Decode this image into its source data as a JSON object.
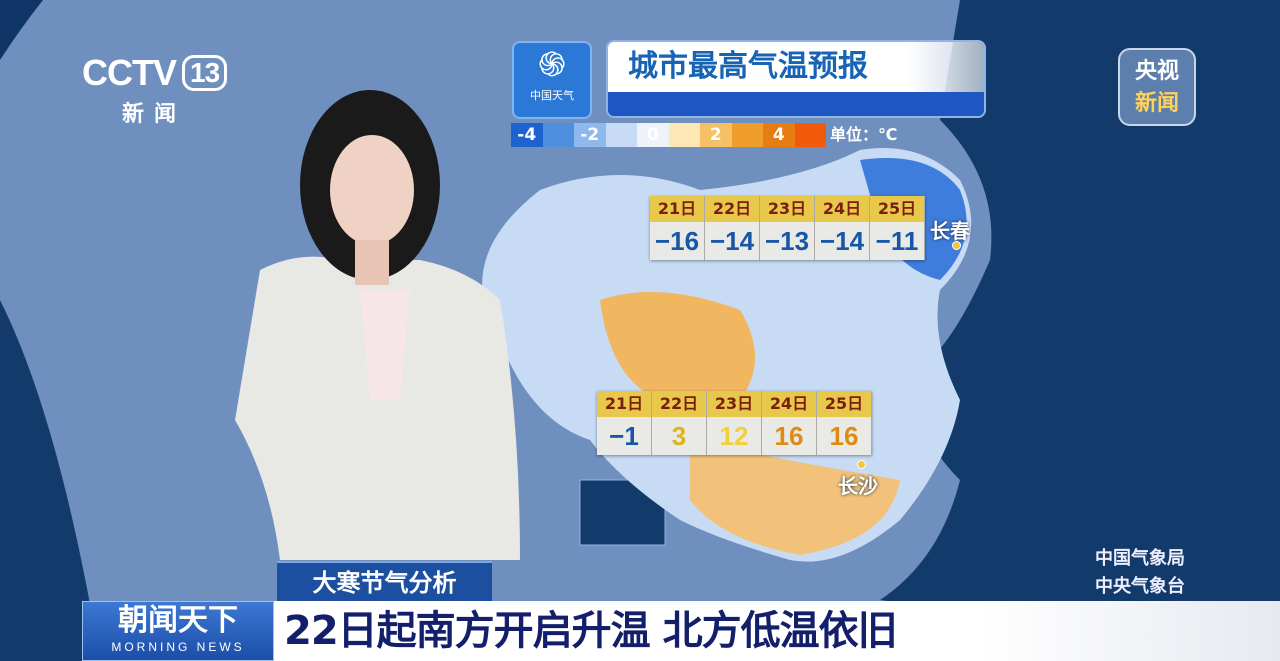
{
  "channel": {
    "logo_text": "CCTV",
    "number": "13",
    "subtitle": "新闻"
  },
  "corner_badge": {
    "line1": "央视",
    "line2": "新闻"
  },
  "weather_logo": {
    "icon": "swirl-icon",
    "text": "中国天气"
  },
  "title": "城市最高气温预报",
  "legend": {
    "segments": [
      {
        "label": "-4",
        "color": "#1d63d0"
      },
      {
        "label": "",
        "color": "#4e8fe0"
      },
      {
        "label": "-2",
        "color": "#8fb8ec"
      },
      {
        "label": "",
        "color": "#c7dcf4"
      },
      {
        "label": "0",
        "color": "#eef3fa"
      },
      {
        "label": "",
        "color": "#fde7b4"
      },
      {
        "label": "2",
        "color": "#f6c064"
      },
      {
        "label": "",
        "color": "#ef9e2c"
      },
      {
        "label": "4",
        "color": "#e67c12"
      },
      {
        "label": "",
        "color": "#f05a0a"
      }
    ],
    "unit": "单位：℃"
  },
  "forecasts": [
    {
      "city": "长春",
      "days": [
        "21日",
        "22日",
        "23日",
        "24日",
        "25日"
      ],
      "values": [
        "−16",
        "−14",
        "−13",
        "−14",
        "−11"
      ],
      "colors": [
        "#1756a8",
        "#1756a8",
        "#1756a8",
        "#1756a8",
        "#1756a8"
      ]
    },
    {
      "city": "长沙",
      "days": [
        "21日",
        "22日",
        "23日",
        "24日",
        "25日"
      ],
      "values": [
        "−1",
        "3",
        "12",
        "16",
        "16"
      ],
      "colors": [
        "#1756a8",
        "#e0b21a",
        "#f2d03a",
        "#e08a16",
        "#e08a16"
      ]
    }
  ],
  "credits": [
    "中国气象局",
    "中央气象台"
  ],
  "segment_tag": "大寒节气分析",
  "program": {
    "name": "朝闻天下",
    "english": "MORNING NEWS"
  },
  "headline": "22日起南方开启升温 北方低温依旧"
}
